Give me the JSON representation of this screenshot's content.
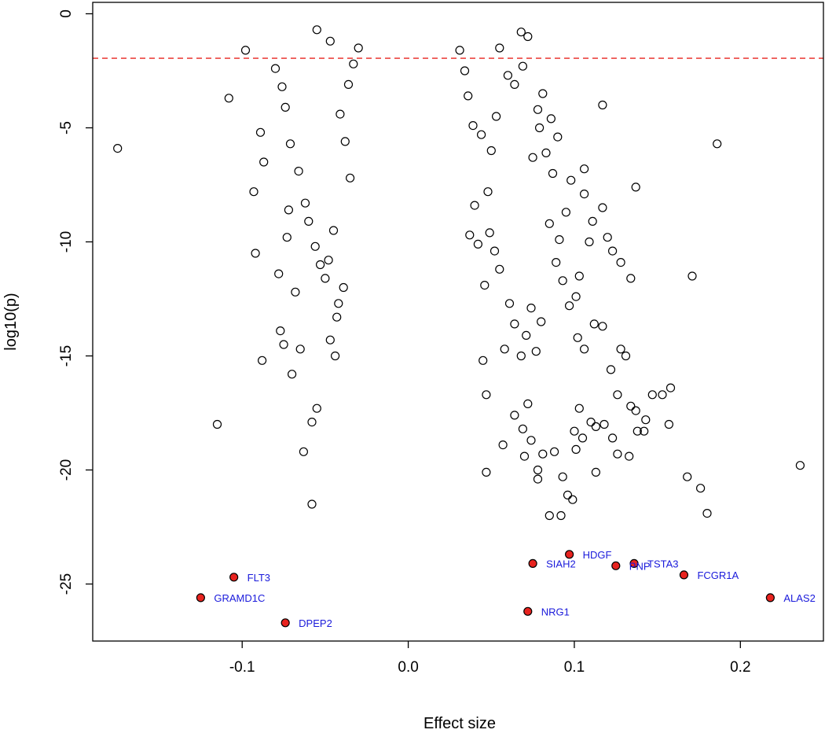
{
  "chart_data": {
    "type": "scatter",
    "title": "",
    "xlabel": "Effect size",
    "ylabel": "log10(p)",
    "xlim": [
      -0.19,
      0.25
    ],
    "ylim": [
      -27.5,
      0.5
    ],
    "x_ticks": [
      -0.1,
      0.0,
      0.1,
      0.2
    ],
    "x_tick_labels": [
      "-0.1",
      "0.0",
      "0.1",
      "0.2"
    ],
    "y_ticks": [
      0,
      -5,
      -10,
      -15,
      -20,
      -25
    ],
    "y_tick_labels": [
      "0",
      "-5",
      "-10",
      "-15",
      "-20",
      "-25"
    ],
    "grid": false,
    "threshold": {
      "y": -1.95,
      "color": "#e8231f",
      "style": "dashed"
    },
    "point_style": {
      "fill": "none",
      "stroke": "#000000"
    },
    "highlight_color": "#e8231f",
    "label_color": "#1a1adb",
    "points": [
      [
        -0.175,
        -5.9
      ],
      [
        -0.098,
        -1.6
      ],
      [
        -0.108,
        -3.7
      ],
      [
        -0.093,
        -7.8
      ],
      [
        -0.092,
        -10.5
      ],
      [
        -0.089,
        -5.2
      ],
      [
        -0.087,
        -6.5
      ],
      [
        -0.088,
        -15.2
      ],
      [
        -0.078,
        -11.4
      ],
      [
        -0.077,
        -13.9
      ],
      [
        -0.075,
        -14.5
      ],
      [
        -0.073,
        -9.8
      ],
      [
        -0.072,
        -8.6
      ],
      [
        -0.07,
        -15.8
      ],
      [
        -0.068,
        -12.2
      ],
      [
        -0.065,
        -14.7
      ],
      [
        -0.063,
        -19.2
      ],
      [
        -0.058,
        -17.9
      ],
      [
        -0.055,
        -17.3
      ],
      [
        -0.058,
        -21.5
      ],
      [
        -0.047,
        -14.3
      ],
      [
        -0.044,
        -15.0
      ],
      [
        -0.043,
        -13.3
      ],
      [
        -0.042,
        -12.7
      ],
      [
        -0.039,
        -12.0
      ],
      [
        -0.115,
        -18.0
      ],
      [
        -0.055,
        -0.7
      ],
      [
        -0.047,
        -1.2
      ],
      [
        -0.08,
        -2.4
      ],
      [
        -0.076,
        -3.2
      ],
      [
        -0.074,
        -4.1
      ],
      [
        -0.071,
        -5.7
      ],
      [
        -0.066,
        -6.9
      ],
      [
        -0.062,
        -8.3
      ],
      [
        -0.06,
        -9.1
      ],
      [
        -0.056,
        -10.2
      ],
      [
        -0.053,
        -11.0
      ],
      [
        -0.05,
        -11.6
      ],
      [
        -0.048,
        -10.8
      ],
      [
        -0.045,
        -9.5
      ],
      [
        0.047,
        -20.1
      ],
      [
        0.047,
        -16.7
      ],
      [
        0.045,
        -15.2
      ],
      [
        0.057,
        -18.9
      ],
      [
        0.064,
        -17.6
      ],
      [
        0.069,
        -18.2
      ],
      [
        0.07,
        -19.4
      ],
      [
        0.072,
        -17.1
      ],
      [
        0.074,
        -18.7
      ],
      [
        0.078,
        -20.0
      ],
      [
        0.078,
        -20.4
      ],
      [
        0.081,
        -19.3
      ],
      [
        0.085,
        -22.0
      ],
      [
        0.088,
        -19.2
      ],
      [
        0.092,
        -22.0
      ],
      [
        0.093,
        -20.3
      ],
      [
        0.096,
        -21.1
      ],
      [
        0.099,
        -21.3
      ],
      [
        0.1,
        -18.3
      ],
      [
        0.101,
        -19.1
      ],
      [
        0.103,
        -17.3
      ],
      [
        0.105,
        -18.6
      ],
      [
        0.113,
        -20.1
      ],
      [
        0.11,
        -17.9
      ],
      [
        0.113,
        -18.1
      ],
      [
        0.118,
        -18.0
      ],
      [
        0.123,
        -18.6
      ],
      [
        0.126,
        -19.3
      ],
      [
        0.133,
        -19.4
      ],
      [
        0.138,
        -18.3
      ],
      [
        0.142,
        -18.3
      ],
      [
        0.157,
        -18.0
      ],
      [
        0.158,
        -16.4
      ],
      [
        0.153,
        -16.7
      ],
      [
        0.147,
        -16.7
      ],
      [
        0.143,
        -17.8
      ],
      [
        0.137,
        -17.4
      ],
      [
        0.134,
        -17.2
      ],
      [
        0.131,
        -15.0
      ],
      [
        0.128,
        -14.7
      ],
      [
        0.126,
        -16.7
      ],
      [
        0.122,
        -15.6
      ],
      [
        0.117,
        -13.7
      ],
      [
        0.112,
        -13.6
      ],
      [
        0.106,
        -14.7
      ],
      [
        0.102,
        -14.2
      ],
      [
        0.097,
        -12.8
      ],
      [
        0.093,
        -11.7
      ],
      [
        0.089,
        -10.9
      ],
      [
        0.085,
        -9.2
      ],
      [
        0.08,
        -13.5
      ],
      [
        0.077,
        -14.8
      ],
      [
        0.074,
        -12.9
      ],
      [
        0.071,
        -14.1
      ],
      [
        0.068,
        -15.0
      ],
      [
        0.064,
        -13.6
      ],
      [
        0.061,
        -12.7
      ],
      [
        0.058,
        -14.7
      ],
      [
        0.055,
        -11.2
      ],
      [
        0.052,
        -10.4
      ],
      [
        0.049,
        -9.6
      ],
      [
        0.046,
        -11.9
      ],
      [
        0.042,
        -10.1
      ],
      [
        0.04,
        -8.4
      ],
      [
        0.037,
        -9.7
      ],
      [
        0.168,
        -20.3
      ],
      [
        0.176,
        -20.8
      ],
      [
        0.18,
        -21.9
      ],
      [
        0.236,
        -19.8
      ],
      [
        0.186,
        -5.7
      ],
      [
        0.171,
        -11.5
      ],
      [
        0.137,
        -7.6
      ],
      [
        0.117,
        -8.5
      ],
      [
        0.117,
        -4.0
      ],
      [
        0.106,
        -6.8
      ],
      [
        0.106,
        -7.9
      ],
      [
        0.098,
        -7.3
      ],
      [
        0.134,
        -11.6
      ],
      [
        0.128,
        -10.9
      ],
      [
        0.123,
        -10.4
      ],
      [
        0.12,
        -9.8
      ],
      [
        0.111,
        -9.1
      ],
      [
        0.109,
        -10.0
      ],
      [
        0.103,
        -11.5
      ],
      [
        0.101,
        -12.4
      ],
      [
        0.09,
        -5.4
      ],
      [
        0.086,
        -4.6
      ],
      [
        0.081,
        -3.5
      ],
      [
        0.078,
        -4.2
      ],
      [
        0.079,
        -5.0
      ],
      [
        0.083,
        -6.1
      ],
      [
        0.087,
        -7.0
      ],
      [
        0.095,
        -8.7
      ],
      [
        0.091,
        -9.9
      ],
      [
        0.075,
        -6.3
      ],
      [
        0.072,
        -1.0
      ],
      [
        0.068,
        -0.8
      ],
      [
        0.069,
        -2.3
      ],
      [
        0.064,
        -3.1
      ],
      [
        0.06,
        -2.7
      ],
      [
        0.055,
        -1.5
      ],
      [
        0.053,
        -4.5
      ],
      [
        0.05,
        -6.0
      ],
      [
        0.048,
        -7.8
      ],
      [
        0.044,
        -5.3
      ],
      [
        -0.035,
        -7.2
      ],
      [
        -0.038,
        -5.6
      ],
      [
        -0.041,
        -4.4
      ],
      [
        -0.036,
        -3.1
      ],
      [
        -0.033,
        -2.2
      ],
      [
        -0.03,
        -1.5
      ],
      [
        0.031,
        -1.6
      ],
      [
        0.034,
        -2.5
      ],
      [
        0.036,
        -3.6
      ],
      [
        0.039,
        -4.9
      ]
    ],
    "highlighted_points": [
      {
        "label": "FLT3",
        "x": -0.105,
        "y": -24.7,
        "label_side": "right"
      },
      {
        "label": "GRAMD1C",
        "x": -0.125,
        "y": -25.6,
        "label_side": "right"
      },
      {
        "label": "DPEP2",
        "x": -0.074,
        "y": -26.7,
        "label_side": "right"
      },
      {
        "label": "SIAH2",
        "x": 0.075,
        "y": -24.1,
        "label_side": "right"
      },
      {
        "label": "HDGF",
        "x": 0.097,
        "y": -23.7,
        "label_side": "right"
      },
      {
        "label": "PNP",
        "x": 0.125,
        "y": -24.2,
        "label_side": "right"
      },
      {
        "label": "TSTA3",
        "x": 0.136,
        "y": -24.1,
        "label_side": "right"
      },
      {
        "label": "FCGR1A",
        "x": 0.166,
        "y": -24.6,
        "label_side": "right"
      },
      {
        "label": "ALAS2",
        "x": 0.218,
        "y": -25.6,
        "label_side": "right"
      },
      {
        "label": "NRG1",
        "x": 0.072,
        "y": -26.2,
        "label_side": "right"
      }
    ]
  }
}
